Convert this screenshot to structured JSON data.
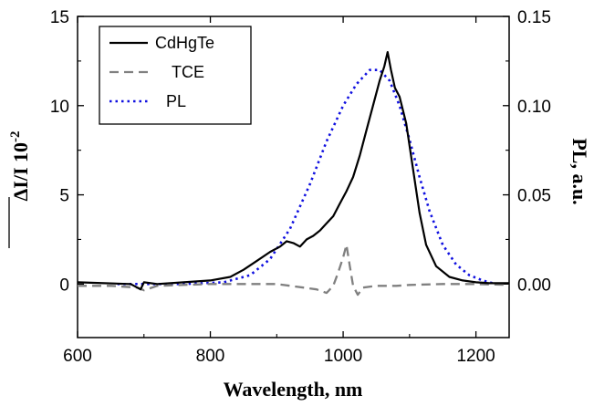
{
  "chart_data": {
    "type": "line",
    "title": "",
    "xlabel": "Wavelength, nm",
    "ylabel_left_main": "ΔI/I 10",
    "ylabel_left_exp": "-2",
    "ylabel_right": "PL, a.u.",
    "xlim": [
      600,
      1250
    ],
    "ylim_left": [
      -3,
      15
    ],
    "ylim_right": [
      -0.03,
      0.15
    ],
    "x_ticks": [
      600,
      800,
      1000,
      1200
    ],
    "x_tick_labels": [
      "600",
      "800",
      "1000",
      "1200"
    ],
    "y_left_ticks": [
      0,
      5,
      10,
      15
    ],
    "y_left_tick_labels": [
      "0",
      "5",
      "10",
      "15"
    ],
    "y_right_ticks": [
      0,
      0.05,
      0.1,
      0.15
    ],
    "y_right_tick_labels": [
      "0.00",
      "0.05",
      "0.10",
      "0.15"
    ],
    "legend_position": "top-left",
    "series": [
      {
        "name": "CdHgTe",
        "axis": "left",
        "color": "#000000",
        "style": "solid",
        "x": [
          600,
          640,
          680,
          695,
          700,
          720,
          760,
          800,
          830,
          850,
          870,
          890,
          905,
          915,
          925,
          935,
          945,
          955,
          965,
          975,
          985,
          995,
          1005,
          1015,
          1025,
          1035,
          1045,
          1055,
          1062,
          1067,
          1072,
          1078,
          1085,
          1095,
          1105,
          1115,
          1125,
          1140,
          1160,
          1180,
          1200,
          1220,
          1250
        ],
        "y": [
          0.1,
          0.05,
          0.0,
          -0.3,
          0.1,
          0.0,
          0.1,
          0.2,
          0.4,
          0.8,
          1.3,
          1.8,
          2.1,
          2.4,
          2.3,
          2.1,
          2.5,
          2.7,
          3.0,
          3.4,
          3.8,
          4.5,
          5.2,
          6.0,
          7.2,
          8.6,
          10.0,
          11.4,
          12.2,
          13.0,
          12.0,
          11.0,
          10.5,
          9.0,
          6.5,
          4.0,
          2.2,
          1.0,
          0.4,
          0.2,
          0.1,
          0.05,
          0.05
        ]
      },
      {
        "name": "TCE",
        "axis": "left",
        "color": "#808080",
        "style": "dashed",
        "x": [
          600,
          650,
          690,
          700,
          720,
          800,
          900,
          940,
          960,
          975,
          985,
          992,
          1000,
          1005,
          1010,
          1015,
          1022,
          1030,
          1050,
          1080,
          1100,
          1150,
          1200,
          1250
        ],
        "y": [
          -0.1,
          -0.1,
          -0.2,
          -0.35,
          -0.1,
          0.0,
          0.0,
          -0.2,
          -0.3,
          -0.5,
          -0.1,
          0.6,
          1.5,
          2.2,
          1.0,
          -0.1,
          -0.6,
          -0.2,
          -0.1,
          -0.1,
          -0.05,
          0.0,
          0.0,
          -0.05
        ]
      },
      {
        "name": "PL",
        "axis": "right",
        "color": "#1010e0",
        "style": "dotted",
        "x": [
          660,
          760,
          820,
          860,
          890,
          920,
          950,
          975,
          1000,
          1020,
          1040,
          1055,
          1070,
          1085,
          1100,
          1115,
          1130,
          1150,
          1170,
          1190,
          1210,
          1230
        ],
        "y": [
          0.0,
          0.0,
          0.001,
          0.005,
          0.014,
          0.031,
          0.056,
          0.08,
          0.1,
          0.112,
          0.12,
          0.12,
          0.114,
          0.1,
          0.081,
          0.06,
          0.041,
          0.022,
          0.011,
          0.005,
          0.002,
          0.0
        ]
      }
    ]
  }
}
